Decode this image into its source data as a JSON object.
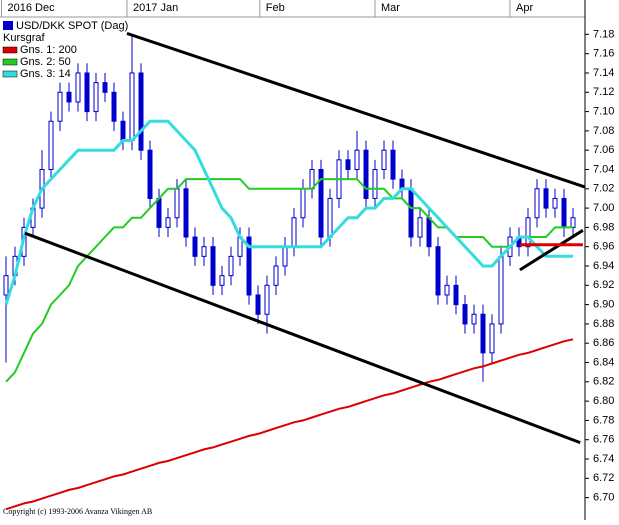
{
  "chart_data": {
    "type": "candlestick",
    "title": "USD/DKK SPOT (Dag)",
    "legend_title": "Kursgraf",
    "footer": "Copyright (c) 1993-2006 Avanza Vikingen AB",
    "up_color": "#ffffff",
    "down_color": "#0000cc",
    "outline_color": "#0000cc",
    "xlim": [
      -0.667,
      64.333
    ],
    "xticks": [
      {
        "value": -0.5,
        "label": "2016 Dec"
      },
      {
        "value": 13.44,
        "label": "2017 Jan"
      },
      {
        "value": 28.2,
        "label": "Feb"
      },
      {
        "value": 41,
        "label": "Mar"
      },
      {
        "value": 56,
        "label": "Apr"
      }
    ],
    "ylim": [
      6.682,
      7.198
    ],
    "yticks": [
      7.18,
      7.16,
      7.14,
      7.12,
      {
        "value": 7.1,
        "label": "7.10"
      },
      7.08,
      7.06,
      7.04,
      7.02,
      {
        "value": 7,
        "label": "7.00"
      },
      6.98,
      6.96,
      6.94,
      6.92,
      {
        "value": 6.9,
        "label": "6.90"
      },
      6.88,
      6.86,
      6.84,
      6.82,
      {
        "value": 6.8,
        "label": "6.80"
      },
      6.78,
      6.76,
      6.74,
      6.72,
      {
        "value": 6.7,
        "label": "6.70"
      }
    ],
    "open": [
      6.91,
      6.93,
      6.95,
      6.98,
      7.0,
      7.04,
      7.09,
      7.12,
      7.11,
      7.14,
      7.1,
      7.13,
      7.12,
      7.09,
      7.07,
      7.14,
      7.06,
      7.01,
      6.98,
      6.99,
      7.02,
      6.97,
      6.95,
      6.96,
      6.92,
      6.93,
      6.95,
      6.97,
      6.91,
      6.89,
      6.92,
      6.94,
      6.96,
      6.99,
      7.02,
      7.04,
      6.97,
      7.01,
      7.05,
      7.04,
      7.06,
      7.01,
      7.04,
      7.06,
      7.03,
      7.02,
      6.97,
      6.99,
      6.96,
      6.91,
      6.92,
      6.9,
      6.88,
      6.89,
      6.85,
      6.88,
      6.95,
      6.97,
      6.96,
      6.99,
      7.02,
      7.0,
      7.01,
      6.98
    ],
    "high": [
      6.95,
      6.96,
      6.99,
      7.01,
      7.06,
      7.1,
      7.13,
      7.13,
      7.15,
      7.15,
      7.14,
      7.14,
      7.13,
      7.1,
      7.18,
      7.15,
      7.07,
      7.02,
      7.0,
      7.03,
      7.03,
      6.98,
      6.97,
      6.97,
      6.94,
      6.96,
      6.98,
      6.98,
      6.92,
      6.93,
      6.95,
      6.97,
      7.0,
      7.03,
      7.05,
      7.05,
      7.02,
      7.06,
      7.06,
      7.08,
      7.07,
      7.05,
      7.07,
      7.07,
      7.04,
      7.03,
      7.0,
      7.0,
      6.97,
      6.93,
      6.93,
      6.91,
      6.9,
      6.9,
      6.89,
      6.96,
      6.98,
      6.98,
      7.0,
      7.03,
      7.03,
      7.02,
      7.02,
      7.0
    ],
    "low": [
      6.84,
      6.92,
      6.94,
      6.97,
      6.99,
      7.03,
      7.08,
      7.1,
      7.1,
      7.09,
      7.09,
      7.11,
      7.08,
      7.06,
      7.06,
      7.05,
      7.0,
      6.97,
      6.97,
      6.98,
      6.96,
      6.94,
      6.94,
      6.91,
      6.91,
      6.92,
      6.94,
      6.9,
      6.88,
      6.87,
      6.91,
      6.93,
      6.95,
      6.98,
      7.01,
      6.96,
      6.96,
      7.0,
      7.03,
      7.03,
      7.0,
      7.0,
      7.03,
      7.02,
      7.01,
      6.96,
      6.96,
      6.95,
      6.9,
      6.9,
      6.89,
      6.87,
      6.87,
      6.82,
      6.84,
      6.87,
      6.94,
      6.95,
      6.95,
      6.98,
      6.99,
      6.99,
      6.97,
      6.97
    ],
    "close": [
      6.93,
      6.95,
      6.98,
      7.0,
      7.04,
      7.09,
      7.12,
      7.11,
      7.14,
      7.1,
      7.13,
      7.12,
      7.09,
      7.07,
      7.14,
      7.06,
      7.01,
      6.98,
      6.99,
      7.02,
      6.97,
      6.95,
      6.96,
      6.92,
      6.93,
      6.95,
      6.97,
      6.91,
      6.89,
      6.92,
      6.94,
      6.96,
      6.99,
      7.02,
      7.04,
      6.97,
      7.01,
      7.05,
      7.04,
      7.06,
      7.01,
      7.04,
      7.06,
      7.03,
      7.02,
      6.97,
      6.99,
      6.96,
      6.91,
      6.92,
      6.9,
      6.88,
      6.89,
      6.85,
      6.88,
      6.95,
      6.97,
      6.96,
      6.99,
      7.02,
      7.0,
      7.01,
      6.98,
      6.99
    ],
    "series": [
      {
        "name": "Gns. 1: 200",
        "color": "#dd0000",
        "values": [
          6.688,
          6.691,
          6.694,
          6.696,
          6.699,
          6.702,
          6.705,
          6.708,
          6.71,
          6.713,
          6.716,
          6.719,
          6.722,
          6.724,
          6.727,
          6.73,
          6.733,
          6.736,
          6.738,
          6.741,
          6.744,
          6.747,
          6.75,
          6.752,
          6.755,
          6.758,
          6.761,
          6.764,
          6.766,
          6.769,
          6.772,
          6.775,
          6.778,
          6.78,
          6.783,
          6.786,
          6.789,
          6.792,
          6.794,
          6.797,
          6.8,
          6.803,
          6.806,
          6.808,
          6.811,
          6.814,
          6.817,
          6.82,
          6.822,
          6.825,
          6.828,
          6.831,
          6.834,
          6.836,
          6.839,
          6.842,
          6.845,
          6.848,
          6.85,
          6.853,
          6.856,
          6.859,
          6.862,
          6.864
        ]
      },
      {
        "name": "Gns. 2: 50",
        "color": "#22cc22",
        "values": [
          6.82,
          6.83,
          6.85,
          6.87,
          6.88,
          6.9,
          6.91,
          6.92,
          6.94,
          6.95,
          6.96,
          6.97,
          6.98,
          6.98,
          6.99,
          6.99,
          7.0,
          7.01,
          7.02,
          7.02,
          7.03,
          7.03,
          7.03,
          7.03,
          7.03,
          7.03,
          7.03,
          7.02,
          7.02,
          7.02,
          7.02,
          7.02,
          7.02,
          7.02,
          7.02,
          7.03,
          7.03,
          7.03,
          7.03,
          7.03,
          7.02,
          7.02,
          7.02,
          7.01,
          7.01,
          7.0,
          7.0,
          6.99,
          6.98,
          6.98,
          6.97,
          6.97,
          6.97,
          6.97,
          6.96,
          6.96,
          6.96,
          6.97,
          6.97,
          6.97,
          6.97,
          6.98,
          6.98,
          6.98
        ]
      },
      {
        "name": "Gns. 3: 14",
        "color": "#33dddd",
        "values": [
          6.9,
          6.93,
          6.97,
          7.0,
          7.02,
          7.03,
          7.04,
          7.05,
          7.06,
          7.06,
          7.06,
          7.06,
          7.06,
          7.07,
          7.07,
          7.08,
          7.09,
          7.09,
          7.09,
          7.08,
          7.07,
          7.06,
          7.04,
          7.02,
          7.0,
          6.99,
          6.97,
          6.96,
          6.96,
          6.96,
          6.96,
          6.96,
          6.96,
          6.96,
          6.96,
          6.96,
          6.97,
          6.98,
          6.99,
          6.99,
          7.0,
          7.0,
          7.01,
          7.01,
          7.02,
          7.02,
          7.01,
          7.0,
          6.99,
          6.98,
          6.97,
          6.96,
          6.95,
          6.94,
          6.94,
          6.95,
          6.96,
          6.97,
          6.97,
          6.96,
          6.95,
          6.95,
          6.95,
          6.95
        ]
      }
    ],
    "trendlines": [
      {
        "color": "#000000",
        "x": [
          13.44,
          64.3
        ],
        "values": [
          7.181,
          7.022
        ]
      },
      {
        "color": "#000000",
        "x": [
          2.1,
          63.8
        ],
        "values": [
          6.974,
          6.757
        ]
      },
      {
        "color": "#000000",
        "x": [
          57.1,
          64.1
        ],
        "values": [
          6.936,
          6.977
        ]
      },
      {
        "color": "#dd0000",
        "x": [
          57.1,
          64.1
        ],
        "values": [
          6.962,
          6.962
        ]
      }
    ]
  }
}
